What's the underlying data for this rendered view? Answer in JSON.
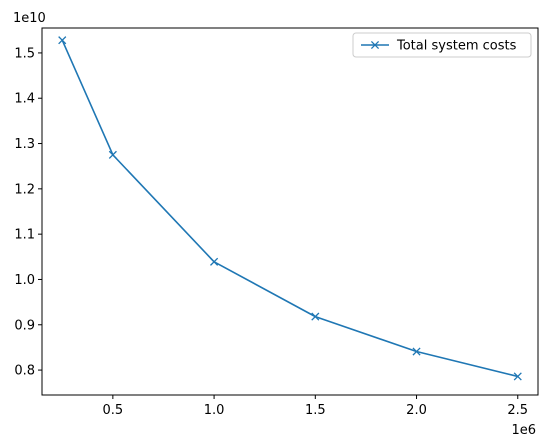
{
  "chart_data": {
    "type": "line",
    "title": "",
    "xlabel": "",
    "ylabel": "",
    "x_offset_label": "1e6",
    "y_offset_label": "1e10",
    "xlim": [
      0.15,
      2.6
    ],
    "ylim": [
      0.745,
      1.555
    ],
    "x_ticks": [
      0.5,
      1.0,
      1.5,
      2.0,
      2.5
    ],
    "x_tick_labels": [
      "0.5",
      "1.0",
      "1.5",
      "2.0",
      "2.5"
    ],
    "y_ticks": [
      0.8,
      0.9,
      1.0,
      1.1,
      1.2,
      1.3,
      1.4,
      1.5
    ],
    "y_tick_labels": [
      "0.8",
      "0.9",
      "1.0",
      "1.1",
      "1.2",
      "1.3",
      "1.4",
      "1.5"
    ],
    "grid": false,
    "legend_position": "top-right",
    "series": [
      {
        "name": "Total system costs",
        "color": "#1f77b4",
        "marker": "x",
        "x": [
          0.25,
          0.5,
          1.0,
          1.5,
          2.0,
          2.5
        ],
        "y": [
          1.528,
          1.275,
          1.039,
          0.918,
          0.841,
          0.786
        ]
      }
    ]
  }
}
